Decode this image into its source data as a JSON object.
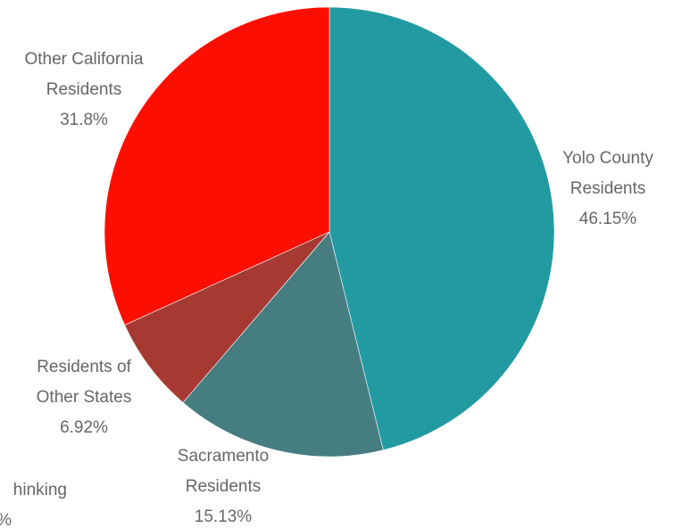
{
  "chart_data": {
    "type": "pie",
    "title": "",
    "legend": "none",
    "slices": [
      {
        "label_lines": [
          "Yolo County",
          "Residents"
        ],
        "percent_label": "46.15%",
        "value": 46.15,
        "color": "#229aa2"
      },
      {
        "label_lines": [
          "Sacramento",
          "Residents"
        ],
        "percent_label": "15.13%",
        "value": 15.13,
        "color": "#467d81"
      },
      {
        "label_lines": [
          "Residents of",
          "Other States"
        ],
        "percent_label": "6.92%",
        "value": 6.92,
        "color": "#a63a33"
      },
      {
        "label_lines": [
          "Other California",
          "Residents"
        ],
        "percent_label": "31.8%",
        "value": 31.8,
        "color": "#fc0f00"
      }
    ],
    "partial_labels": [
      {
        "lines": [
          "hinking",
          "%"
        ]
      }
    ]
  }
}
